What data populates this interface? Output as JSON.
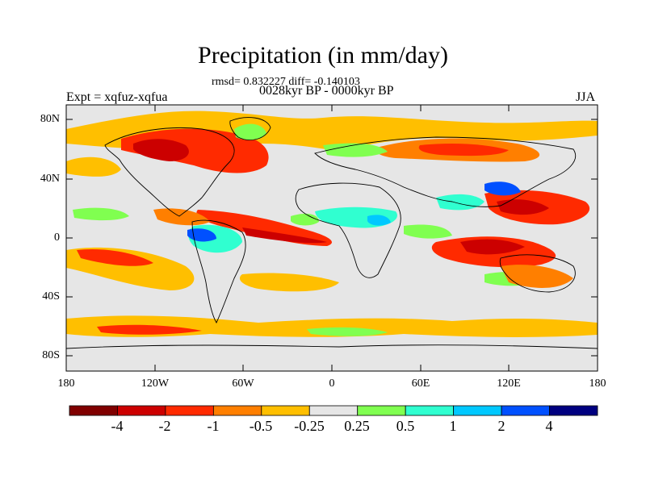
{
  "title": "Precipitation (in mm/day)",
  "stats_line": "rmsd= 0.832227 diff= -0.140103",
  "period_line": "0028kyr BP - 0000kyr BP",
  "experiment_label": "Expt = xqfuz-xqfua",
  "season_label": "JJA",
  "lat_ticks": [
    "80N",
    "40N",
    "0",
    "40S",
    "80S"
  ],
  "lon_ticks": [
    "180",
    "120W",
    "60W",
    "0",
    "60E",
    "120E",
    "180"
  ],
  "colorbar": {
    "colors": [
      "#800000",
      "#cc0000",
      "#ff2a00",
      "#ff7f00",
      "#ffbf00",
      "#e6e6e6",
      "#80ff50",
      "#30ffd0",
      "#00c8ff",
      "#0050ff",
      "#000080"
    ],
    "labels": [
      "-4",
      "-2",
      "-1",
      "-0.5",
      "-0.25",
      "0.25",
      "0.5",
      "1",
      "2",
      "4"
    ]
  }
}
